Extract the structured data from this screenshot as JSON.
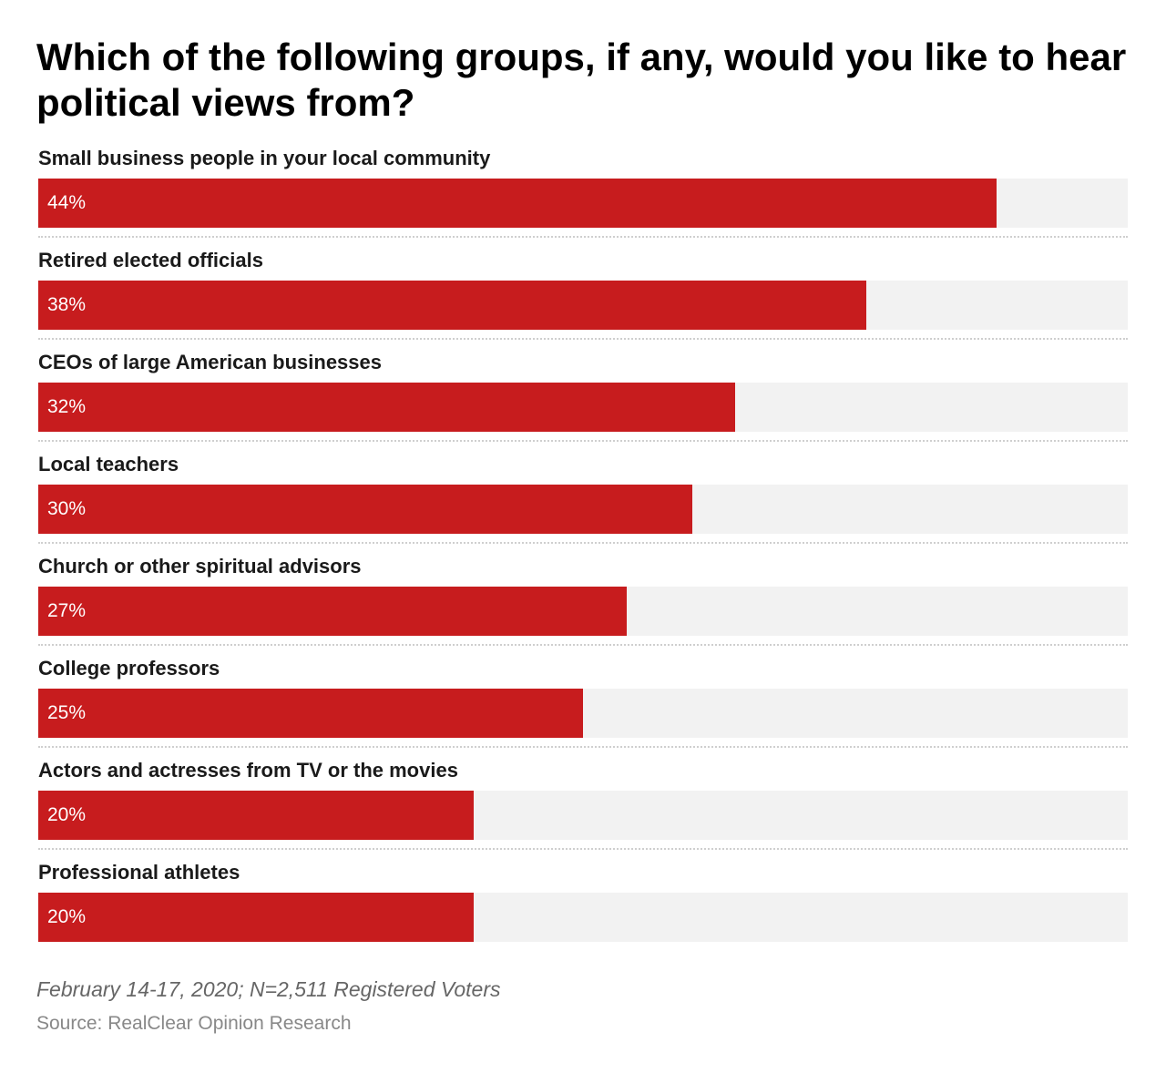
{
  "chart_data": {
    "type": "bar",
    "orientation": "horizontal",
    "title": "Which of the following groups, if any, would you like to hear political views from?",
    "categories": [
      "Small business people in your local community",
      "Retired elected officials",
      "CEOs of large American businesses",
      "Local teachers",
      "Church or other spiritual advisors",
      "College professors",
      "Actors and actresses from TV or the movies",
      "Professional athletes"
    ],
    "values": [
      44,
      38,
      32,
      30,
      27,
      25,
      20,
      20
    ],
    "value_labels": [
      "44%",
      "38%",
      "32%",
      "30%",
      "27%",
      "25%",
      "20%",
      "20%"
    ],
    "unit": "%",
    "xlim": [
      0,
      50
    ],
    "bar_color": "#c71c1e",
    "track_color": "#f2f2f2",
    "grid": false,
    "legend": "none"
  },
  "footer": {
    "note": "February 14-17, 2020; N=2,511 Registered Voters",
    "source": "Source: RealClear Opinion Research"
  }
}
